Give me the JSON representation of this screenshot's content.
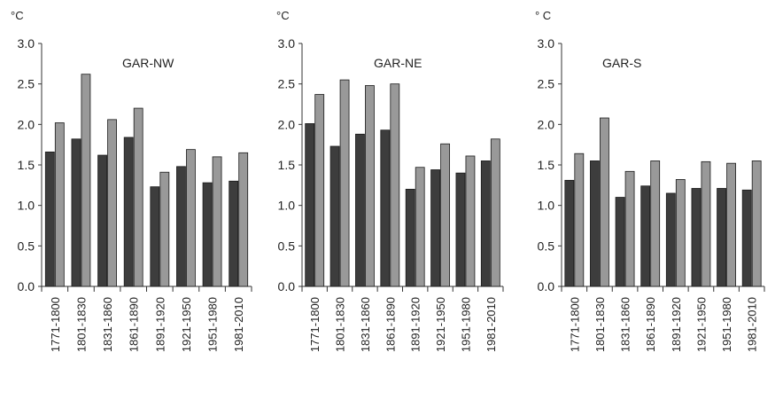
{
  "chart_data": [
    {
      "type": "bar",
      "title": "GAR-NW",
      "ylabel": "°C",
      "ylim": [
        0,
        3.0
      ],
      "yticks": [
        "0.0",
        "0.5",
        "1.0",
        "1.5",
        "2.0",
        "2.5",
        "3.0"
      ],
      "categories": [
        "1771-1800",
        "1801-1830",
        "1831-1860",
        "1861-1890",
        "1891-1920",
        "1921-1950",
        "1951-1980",
        "1981-2010"
      ],
      "series": [
        {
          "values": [
            1.66,
            1.82,
            1.62,
            1.84,
            1.23,
            1.48,
            1.28,
            1.3
          ]
        },
        {
          "values": [
            2.02,
            2.62,
            2.06,
            2.2,
            1.41,
            1.69,
            1.6,
            1.65
          ]
        }
      ],
      "grid": false,
      "colors": [
        "#3d3d3d",
        "#999999"
      ]
    },
    {
      "type": "bar",
      "title": "GAR-NE",
      "ylabel": "°C",
      "ylim": [
        0,
        3.0
      ],
      "yticks": [
        "0.0",
        "0.5",
        "1.0",
        "1.5",
        "2.0",
        "2.5",
        "3.0"
      ],
      "categories": [
        "1771-1800",
        "1801-1830",
        "1831-1860",
        "1861-1890",
        "1891-1920",
        "1921-1950",
        "1951-1980",
        "1981-2010"
      ],
      "series": [
        {
          "values": [
            2.01,
            1.73,
            1.88,
            1.93,
            1.2,
            1.44,
            1.4,
            1.55
          ]
        },
        {
          "values": [
            2.37,
            2.55,
            2.48,
            2.5,
            1.47,
            1.76,
            1.61,
            1.82
          ]
        }
      ],
      "grid": false,
      "colors": [
        "#3d3d3d",
        "#999999"
      ]
    },
    {
      "type": "bar",
      "title": "GAR-S",
      "ylabel": "° C",
      "ylim": [
        0,
        3.0
      ],
      "yticks": [
        "0.0",
        "0.5",
        "1.0",
        "1.5",
        "2.0",
        "2.5",
        "3.0"
      ],
      "categories": [
        "1771-1800",
        "1801-1830",
        "1831-1860",
        "1861-1890",
        "1891-1920",
        "1921-1950",
        "1951-1980",
        "1981-2010"
      ],
      "series": [
        {
          "values": [
            1.31,
            1.55,
            1.1,
            1.24,
            1.15,
            1.21,
            1.21,
            1.19
          ]
        },
        {
          "values": [
            1.64,
            2.08,
            1.42,
            1.55,
            1.32,
            1.54,
            1.52,
            1.55
          ]
        }
      ],
      "grid": false,
      "colors": [
        "#3d3d3d",
        "#999999"
      ]
    }
  ]
}
